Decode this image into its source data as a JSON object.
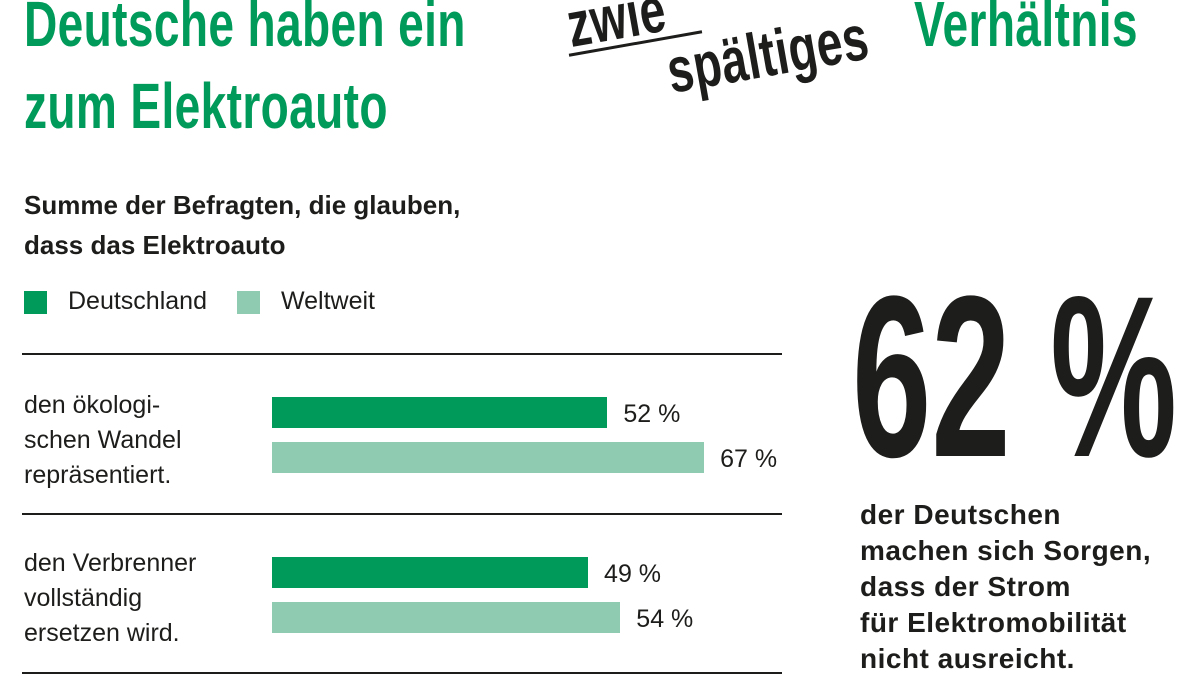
{
  "header": {
    "line1": "Deutsche haben ein",
    "strike": "zwie",
    "split": "spältiges",
    "word": "Verhältnis",
    "line2": "zum Elektroauto"
  },
  "chart_data": {
    "type": "bar",
    "orientation": "horizontal",
    "title": "Summe der Befragten, die glauben,\ndass das Elektroauto",
    "categories": [
      "den ökologi-\nschen Wandel\nrepräsentiert.",
      "den Verbrenner\nvollständig\nersetzen wird."
    ],
    "series": [
      {
        "name": "Deutschland",
        "color": "#009a5a",
        "values": [
          52,
          49
        ],
        "value_labels": [
          "52 %",
          "49 %"
        ]
      },
      {
        "name": "Weltweit",
        "color": "#8fcbb0",
        "values": [
          67,
          54
        ],
        "value_labels": [
          "67 %",
          "54 %"
        ]
      }
    ]
  },
  "stat": {
    "figure": "62 %",
    "text": "der Deutschen\nmachen sich Sorgen,\ndass der Strom\nfür Elektromobilität\nnicht ausreicht."
  }
}
